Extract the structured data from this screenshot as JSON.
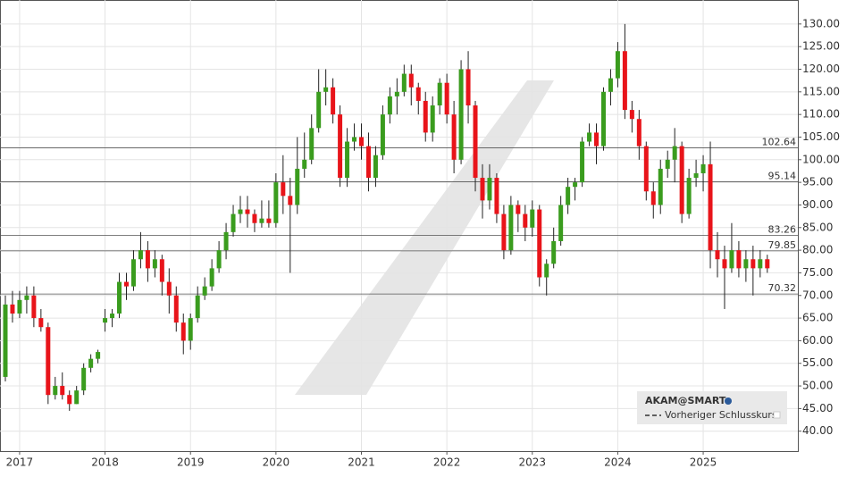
{
  "chart_data": {
    "type": "candlestick",
    "name": "AKAM@SMART",
    "reference_legend": "Vorheriger Schlusskurs",
    "up_color": "#3a9c1e",
    "down_color": "#e8141a",
    "categories": [
      null,
      null,
      "2017",
      null,
      null,
      null,
      null,
      null,
      null,
      null,
      null,
      null,
      null,
      null,
      "2018",
      null,
      null,
      null,
      null,
      null,
      null,
      null,
      null,
      null,
      null,
      null,
      "2019",
      null,
      null,
      null,
      null,
      null,
      null,
      null,
      null,
      null,
      null,
      null,
      "2020",
      null,
      null,
      null,
      null,
      null,
      null,
      null,
      null,
      null,
      null,
      null,
      "2021",
      null,
      null,
      null,
      null,
      null,
      null,
      null,
      null,
      null,
      null,
      null,
      "2022",
      null,
      null,
      null,
      null,
      null,
      null,
      null,
      null,
      null,
      null,
      null,
      "2023",
      null,
      null,
      null,
      null,
      null,
      null,
      null,
      null,
      null,
      null,
      null,
      "2024",
      null,
      null,
      null,
      null,
      null,
      null,
      null,
      null,
      null,
      null,
      null,
      "2025",
      null,
      null,
      null,
      null,
      null,
      null,
      null,
      null,
      null
    ],
    "open": [
      52,
      68,
      66,
      69,
      70,
      65,
      63,
      48,
      50,
      48,
      46,
      49,
      54,
      56,
      64,
      65,
      66,
      73,
      72,
      78,
      80,
      76,
      78,
      73,
      70,
      64,
      60,
      65,
      70,
      72,
      76,
      80,
      84,
      88,
      89,
      88,
      86,
      87,
      86,
      95,
      92,
      90,
      98,
      100,
      107,
      115,
      116,
      110,
      96,
      104,
      105,
      103,
      96,
      101,
      110,
      114,
      115,
      119,
      116,
      113,
      106,
      112,
      117,
      110,
      100,
      120,
      112,
      96,
      91,
      96,
      88,
      80,
      90,
      88,
      85,
      89,
      74,
      77,
      82,
      90,
      94,
      95,
      104,
      106,
      103,
      115,
      118,
      124,
      111,
      109,
      103,
      93,
      90,
      98,
      100,
      103,
      88,
      96,
      97,
      99,
      80,
      78,
      76,
      80,
      76,
      78,
      76,
      78
    ],
    "high": [
      70,
      71,
      71,
      72,
      72,
      67,
      64,
      52,
      53,
      49,
      50,
      55,
      57,
      58,
      67,
      67,
      75,
      75,
      80,
      84,
      82,
      80,
      79,
      76,
      72,
      66,
      66,
      72,
      74,
      78,
      82,
      86,
      90,
      92,
      92,
      89,
      91,
      91,
      97,
      101,
      96,
      105,
      106,
      110,
      120,
      120,
      118,
      112,
      107,
      108,
      108,
      106,
      103,
      112,
      116,
      118,
      121,
      121,
      117,
      115,
      114,
      118,
      119,
      113,
      122,
      124,
      113,
      99,
      99,
      97,
      90,
      92,
      91,
      90,
      91,
      90,
      78,
      85,
      92,
      96,
      96,
      105,
      108,
      108,
      116,
      120,
      126,
      130,
      113,
      111,
      104,
      95,
      100,
      102,
      107,
      104,
      98,
      100,
      101,
      104,
      84,
      81,
      86,
      82,
      80,
      81,
      80,
      79
    ],
    "low": [
      51,
      64,
      65,
      66,
      63,
      62,
      46,
      47,
      47,
      44.5,
      46,
      48,
      53,
      55,
      62,
      63,
      65,
      69,
      71,
      76,
      73,
      74,
      70,
      66,
      62,
      57,
      58,
      64,
      69,
      71,
      75,
      78,
      83,
      86,
      85,
      84,
      85,
      85,
      85,
      88,
      75,
      88,
      96,
      99,
      106,
      112,
      108,
      94,
      94,
      102,
      100,
      93,
      94,
      100,
      108,
      110,
      114,
      112,
      110,
      104,
      104,
      110,
      108,
      97,
      99,
      108,
      93,
      87,
      89,
      86,
      78,
      79,
      84,
      82,
      83,
      72,
      70,
      76,
      81,
      88,
      91,
      94,
      103,
      99,
      102,
      112,
      116,
      109,
      106,
      100,
      91,
      87,
      88,
      96,
      95,
      86,
      87,
      94,
      93,
      76,
      74,
      67,
      75,
      74,
      73,
      70,
      74,
      75
    ],
    "close": [
      68,
      66,
      69,
      70,
      65,
      63,
      48,
      50,
      48,
      46,
      49,
      54,
      56,
      57.5,
      65,
      66,
      73,
      72,
      78,
      80,
      76,
      78,
      73,
      70,
      64,
      60,
      65,
      70,
      72,
      76,
      80,
      84,
      88,
      89,
      88,
      86,
      87,
      86,
      95,
      92,
      90,
      98,
      100,
      107,
      115,
      116,
      110,
      96,
      104,
      105,
      103,
      96,
      101,
      110,
      114,
      115,
      119,
      116,
      113,
      106,
      112,
      117,
      110,
      100,
      120,
      112,
      96,
      91,
      96,
      88,
      80,
      90,
      88,
      85,
      89,
      74,
      77,
      82,
      90,
      94,
      95,
      104,
      106,
      103,
      115,
      118,
      124,
      111,
      109,
      103,
      93,
      90,
      98,
      100,
      103,
      88,
      96,
      97,
      99,
      80,
      78,
      76,
      80,
      76,
      78,
      76,
      78,
      76
    ],
    "hlines": [
      102.64,
      95.14,
      83.26,
      79.85,
      70.32
    ],
    "ylim": [
      35.6,
      135.3
    ],
    "yticks": [
      {
        "value": 130,
        "label": "130.00"
      },
      {
        "value": 125,
        "label": "125.00"
      },
      {
        "value": 120,
        "label": "120.00"
      },
      {
        "value": 115,
        "label": "115.00"
      },
      {
        "value": 110,
        "label": "110.00"
      },
      {
        "value": 105,
        "label": "105.00"
      },
      {
        "value": 100,
        "label": "100.00"
      },
      {
        "value": 95,
        "label": "95.00"
      },
      {
        "value": 90,
        "label": "90.00"
      },
      {
        "value": 85,
        "label": "85.00"
      },
      {
        "value": 80,
        "label": "80.00"
      },
      {
        "value": 75,
        "label": "75.00"
      },
      {
        "value": 70,
        "label": "70.00"
      },
      {
        "value": 65,
        "label": "65.00"
      },
      {
        "value": 60,
        "label": "60.00"
      },
      {
        "value": 55,
        "label": "55.00"
      },
      {
        "value": 50,
        "label": "50.00"
      },
      {
        "value": 45,
        "label": "45.00"
      },
      {
        "value": 40,
        "label": "40.00"
      }
    ],
    "grid": true
  }
}
